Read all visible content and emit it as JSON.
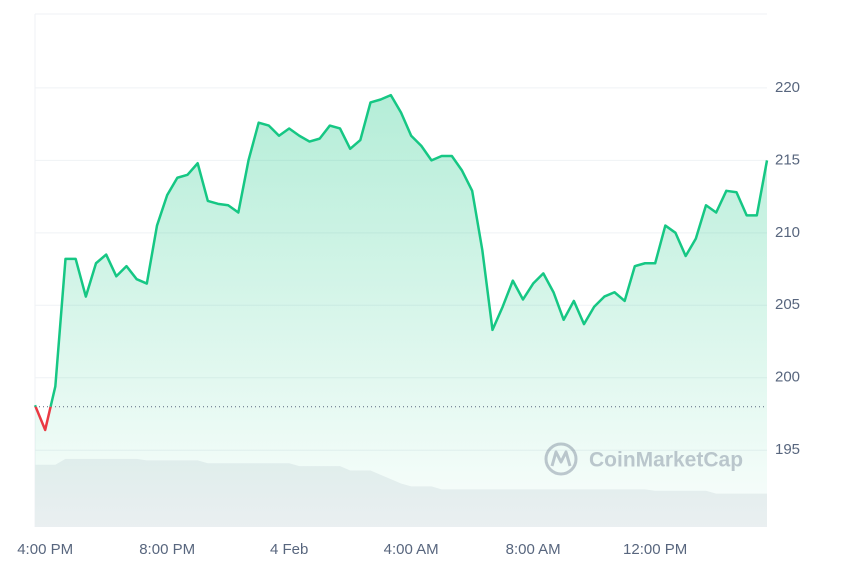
{
  "chart_data": {
    "type": "line",
    "categories": [
      null,
      "4:00 PM",
      null,
      null,
      null,
      null,
      null,
      null,
      null,
      null,
      null,
      null,
      null,
      "8:00 PM",
      null,
      null,
      null,
      null,
      null,
      null,
      null,
      null,
      null,
      null,
      null,
      "4 Feb",
      null,
      null,
      null,
      null,
      null,
      null,
      null,
      null,
      null,
      null,
      null,
      "4:00 AM",
      null,
      null,
      null,
      null,
      null,
      null,
      null,
      null,
      null,
      null,
      null,
      "8:00 AM",
      null,
      null,
      null,
      null,
      null,
      null,
      null,
      null,
      null,
      null,
      null,
      "12:00 PM",
      null,
      null,
      null,
      null,
      null,
      null,
      null,
      null,
      null,
      null,
      null
    ],
    "series": [
      {
        "color": "#16c784",
        "below_color": "#ea3943",
        "values": [
          198.1,
          196.4,
          199.4,
          208.2,
          208.2,
          205.6,
          207.9,
          208.5,
          207.0,
          207.7,
          206.8,
          206.5,
          210.5,
          212.6,
          213.8,
          214.0,
          214.8,
          212.2,
          212.0,
          211.9,
          211.4,
          215.0,
          217.6,
          217.4,
          216.7,
          217.2,
          216.7,
          216.3,
          216.5,
          217.4,
          217.2,
          215.8,
          216.4,
          219.0,
          219.2,
          219.5,
          218.3,
          216.7,
          216.0,
          215.0,
          215.3,
          215.3,
          214.3,
          212.9,
          208.8,
          203.3,
          204.9,
          206.7,
          205.4,
          206.5,
          207.2,
          205.9,
          204.0,
          205.3,
          203.7,
          204.9,
          205.6,
          205.9,
          205.3,
          207.7,
          207.9,
          207.9,
          210.5,
          210.0,
          208.4,
          209.6,
          211.9,
          211.4,
          212.9,
          212.8,
          211.2,
          211.2,
          215.0
        ]
      },
      {
        "type": "area",
        "color": "#eef0f3",
        "values": [
          194.0,
          194.0,
          194.0,
          194.4,
          194.4,
          194.4,
          194.4,
          194.4,
          194.4,
          194.4,
          194.4,
          194.3,
          194.3,
          194.3,
          194.3,
          194.3,
          194.3,
          194.1,
          194.1,
          194.1,
          194.1,
          194.1,
          194.1,
          194.1,
          194.1,
          194.1,
          193.9,
          193.9,
          193.9,
          193.9,
          193.9,
          193.6,
          193.6,
          193.6,
          193.3,
          193.0,
          192.7,
          192.5,
          192.5,
          192.5,
          192.3,
          192.3,
          192.3,
          192.3,
          192.3,
          192.3,
          192.3,
          192.3,
          192.3,
          192.3,
          192.3,
          192.3,
          192.3,
          192.3,
          192.3,
          192.3,
          192.3,
          192.3,
          192.3,
          192.3,
          192.3,
          192.2,
          192.2,
          192.2,
          192.2,
          192.2,
          192.2,
          192.0,
          192.0,
          192.0,
          192.0,
          192.0,
          192.0
        ]
      }
    ],
    "baseline": 198,
    "ylim": [
      189.7,
      225.1
    ],
    "yticks": [
      195,
      200,
      205,
      210,
      215,
      220
    ],
    "grid": true,
    "watermark": "CoinMarketCap"
  }
}
